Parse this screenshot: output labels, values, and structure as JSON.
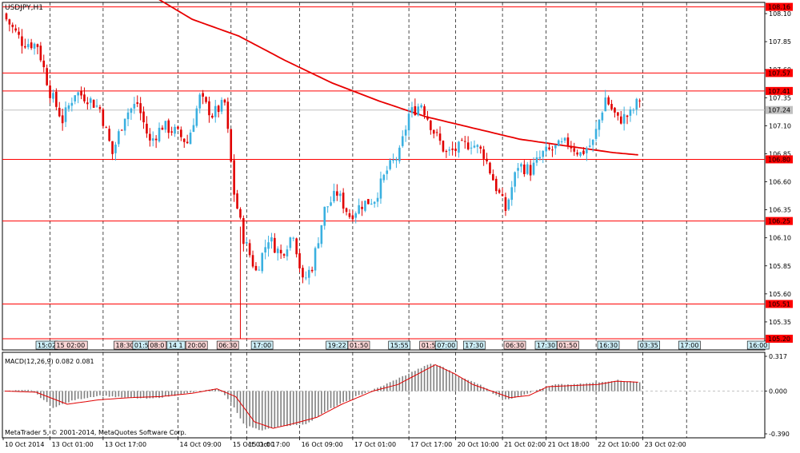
{
  "window": {
    "symbol_title": "USDJPY,H1",
    "copyright": "MetaTrader 5, © 2001-2014, MetaQuotes Software Corp."
  },
  "colors": {
    "background": "#ffffff",
    "grid": "#000000",
    "bull": "#3ab0e0",
    "bear": "#e00000",
    "ma": "#e80000",
    "level_line": "#ff0000",
    "current_price_line": "#c0c0c0",
    "macd_hist": "#808080",
    "macd_signal": "#e00000",
    "label_box": "#ff0000"
  },
  "chart_data": [
    {
      "type": "candlestick",
      "title": "USDJPY,H1",
      "ylim": [
        105.1,
        108.2
      ],
      "y_ticks": [
        "108.10",
        "107.85",
        "107.60",
        "107.35",
        "107.10",
        "106.85",
        "106.60",
        "106.35",
        "106.10",
        "105.85",
        "105.60",
        "105.35"
      ],
      "y_tick_values": [
        108.1,
        107.85,
        107.6,
        107.35,
        107.1,
        106.85,
        106.6,
        106.35,
        106.1,
        105.85,
        105.6,
        105.35
      ],
      "levels": [
        {
          "label": "108.16",
          "value": 108.16
        },
        {
          "label": "107.57",
          "value": 107.57
        },
        {
          "label": "107.41",
          "value": 107.41
        },
        {
          "label": "106.80",
          "value": 106.8
        },
        {
          "label": "106.25",
          "value": 106.25
        },
        {
          "label": "105.51",
          "value": 105.51
        },
        {
          "label": "105.20",
          "value": 105.2
        }
      ],
      "current_price": {
        "label": "107.24",
        "value": 107.24
      },
      "x_labels": [
        "10 Oct 2014",
        "13 Oct 01:00",
        "13 Oct 17:00",
        "14 Oct 09:00",
        "15 Oct 01:00",
        "15 Oct 17:00",
        "16 Oct 09:00",
        "17 Oct 01:00",
        "17 Oct 17:00",
        "20 Oct 10:00",
        "21 Oct 02:00",
        "21 Oct 18:00",
        "22 Oct 10:00",
        "23 Oct 02:00"
      ],
      "close_anchors": [
        [
          0,
          108.05
        ],
        [
          5,
          107.85
        ],
        [
          10,
          107.82
        ],
        [
          14,
          107.4
        ],
        [
          18,
          107.15
        ],
        [
          22,
          107.4
        ],
        [
          26,
          107.35
        ],
        [
          30,
          107.25
        ],
        [
          34,
          106.85
        ],
        [
          38,
          107.2
        ],
        [
          42,
          107.3
        ],
        [
          46,
          106.95
        ],
        [
          50,
          107.1
        ],
        [
          54,
          107.05
        ],
        [
          58,
          106.95
        ],
        [
          62,
          107.35
        ],
        [
          66,
          107.2
        ],
        [
          70,
          107.3
        ],
        [
          73,
          106.5
        ],
        [
          76,
          106.1
        ],
        [
          80,
          105.8
        ],
        [
          84,
          106.1
        ],
        [
          88,
          105.95
        ],
        [
          92,
          106.15
        ],
        [
          95,
          105.7
        ],
        [
          98,
          105.85
        ],
        [
          102,
          106.35
        ],
        [
          106,
          106.5
        ],
        [
          110,
          106.3
        ],
        [
          114,
          106.4
        ],
        [
          118,
          106.45
        ],
        [
          122,
          106.7
        ],
        [
          126,
          106.85
        ],
        [
          129,
          107.2
        ],
        [
          133,
          107.3
        ],
        [
          137,
          107.05
        ],
        [
          141,
          106.85
        ],
        [
          145,
          106.9
        ],
        [
          149,
          106.95
        ],
        [
          153,
          106.85
        ],
        [
          157,
          106.55
        ],
        [
          160,
          106.35
        ],
        [
          164,
          106.75
        ],
        [
          168,
          106.7
        ],
        [
          172,
          106.85
        ],
        [
          176,
          106.9
        ],
        [
          180,
          106.95
        ],
        [
          184,
          106.85
        ],
        [
          188,
          106.95
        ],
        [
          192,
          107.35
        ],
        [
          196,
          107.15
        ],
        [
          200,
          107.2
        ],
        [
          203,
          107.34
        ]
      ],
      "ma_anchors": [
        [
          45,
          108.3
        ],
        [
          60,
          108.05
        ],
        [
          75,
          107.9
        ],
        [
          90,
          107.68
        ],
        [
          105,
          107.48
        ],
        [
          120,
          107.32
        ],
        [
          135,
          107.18
        ],
        [
          150,
          107.08
        ],
        [
          165,
          106.98
        ],
        [
          180,
          106.92
        ],
        [
          195,
          106.86
        ],
        [
          203,
          106.84
        ]
      ],
      "time_boxes": [
        {
          "text": "15:02",
          "slot": 10,
          "color": "bull"
        },
        {
          "text": "15 02:00",
          "slot": 16,
          "color": "bear"
        },
        {
          "text": "18:30",
          "slot": 35,
          "color": "bear"
        },
        {
          "text": "01:5",
          "slot": 41,
          "color": "bull"
        },
        {
          "text": "08:0",
          "slot": 46,
          "color": "bear"
        },
        {
          "text": "14 1",
          "slot": 52,
          "color": "bull"
        },
        {
          "text": "20:00",
          "slot": 58,
          "color": "bear"
        },
        {
          "text": "06:30",
          "slot": 68,
          "color": "bear"
        },
        {
          "text": "17:00",
          "slot": 79,
          "color": "bull"
        },
        {
          "text": "19:22",
          "slot": 103,
          "color": "bull"
        },
        {
          "text": "01:50",
          "slot": 110,
          "color": "bear"
        },
        {
          "text": "15:55",
          "slot": 123,
          "color": "bull"
        },
        {
          "text": "01:50",
          "slot": 133,
          "color": "bear"
        },
        {
          "text": "07:00",
          "slot": 138,
          "color": "bull"
        },
        {
          "text": "17:30",
          "slot": 147,
          "color": "bull"
        },
        {
          "text": "06:30",
          "slot": 160,
          "color": "bear"
        },
        {
          "text": "17:30",
          "slot": 170,
          "color": "bull"
        },
        {
          "text": "01:50",
          "slot": 177,
          "color": "bear"
        },
        {
          "text": "16:30",
          "slot": 190,
          "color": "bull"
        },
        {
          "text": "03:35",
          "slot": 203,
          "color": "bull"
        },
        {
          "text": "17:00",
          "slot": 216,
          "color": "bull"
        },
        {
          "text": "16:00",
          "slot": 238,
          "color": "bull"
        }
      ]
    },
    {
      "type": "macd",
      "title": "MACD(12,26,9) 0.082 0.081",
      "ylim": [
        -0.39,
        0.317
      ],
      "y_ticks": [
        "0.317",
        "0.000",
        "-0.390"
      ],
      "y_tick_values": [
        0.317,
        0.0,
        -0.39
      ],
      "hist_anchors": [
        [
          0,
          0.0
        ],
        [
          8,
          0.01
        ],
        [
          15,
          -0.15
        ],
        [
          22,
          -0.08
        ],
        [
          30,
          -0.04
        ],
        [
          38,
          -0.06
        ],
        [
          46,
          -0.07
        ],
        [
          54,
          -0.04
        ],
        [
          62,
          0.0
        ],
        [
          68,
          0.02
        ],
        [
          72,
          -0.1
        ],
        [
          76,
          -0.3
        ],
        [
          82,
          -0.36
        ],
        [
          88,
          -0.32
        ],
        [
          96,
          -0.3
        ],
        [
          104,
          -0.16
        ],
        [
          112,
          -0.05
        ],
        [
          120,
          0.04
        ],
        [
          126,
          0.12
        ],
        [
          132,
          0.2
        ],
        [
          136,
          0.25
        ],
        [
          140,
          0.22
        ],
        [
          146,
          0.12
        ],
        [
          152,
          0.06
        ],
        [
          156,
          -0.02
        ],
        [
          160,
          -0.08
        ],
        [
          164,
          -0.05
        ],
        [
          170,
          0.01
        ],
        [
          176,
          0.06
        ],
        [
          182,
          0.06
        ],
        [
          190,
          0.08
        ],
        [
          196,
          0.1
        ],
        [
          203,
          0.08
        ]
      ],
      "signal_anchors": [
        [
          0,
          0.0
        ],
        [
          10,
          -0.01
        ],
        [
          20,
          -0.12
        ],
        [
          30,
          -0.08
        ],
        [
          40,
          -0.06
        ],
        [
          50,
          -0.05
        ],
        [
          60,
          -0.02
        ],
        [
          68,
          0.02
        ],
        [
          74,
          -0.05
        ],
        [
          80,
          -0.28
        ],
        [
          86,
          -0.34
        ],
        [
          92,
          -0.3
        ],
        [
          100,
          -0.24
        ],
        [
          108,
          -0.12
        ],
        [
          118,
          0.0
        ],
        [
          126,
          0.06
        ],
        [
          134,
          0.18
        ],
        [
          138,
          0.24
        ],
        [
          144,
          0.16
        ],
        [
          150,
          0.06
        ],
        [
          156,
          0.0
        ],
        [
          162,
          -0.06
        ],
        [
          168,
          -0.04
        ],
        [
          174,
          0.04
        ],
        [
          182,
          0.05
        ],
        [
          190,
          0.06
        ],
        [
          196,
          0.09
        ],
        [
          203,
          0.081
        ]
      ]
    }
  ]
}
